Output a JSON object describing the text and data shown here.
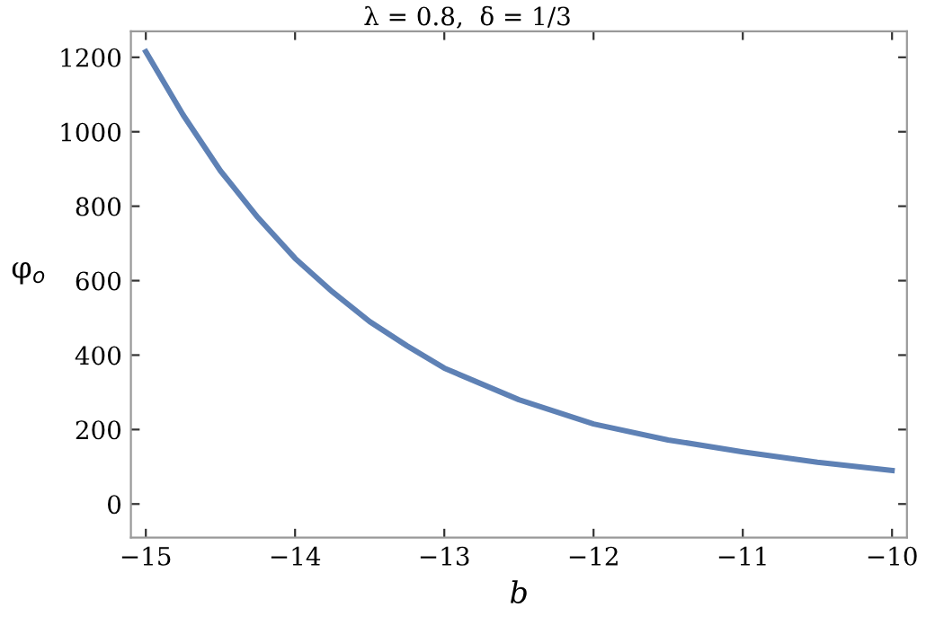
{
  "chart_data": {
    "type": "line",
    "title": "λ = 0.8,  δ = 1/3",
    "xlabel": "b",
    "ylabel": "φ$_{o}$",
    "series": [
      {
        "color": "#5e81b5",
        "x": [
          -15,
          -14.75,
          -14.5,
          -14.25,
          -14,
          -13.75,
          -13.5,
          -13.25,
          -13,
          -12.5,
          -12,
          -11.5,
          -11,
          -10.5,
          -10
        ],
        "values": [
          1215,
          1045,
          895,
          770,
          660,
          570,
          490,
          425,
          365,
          280,
          215,
          172,
          140,
          112,
          90
        ]
      }
    ],
    "xlim": [
      -15.1,
      -9.9
    ],
    "ylim": [
      -90,
      1270
    ],
    "xticks": [
      -15,
      -14,
      -13,
      -12,
      -11,
      -10
    ],
    "yticks": [
      0,
      200,
      400,
      600,
      800,
      1000,
      1200
    ],
    "grid": false,
    "legend": false,
    "marker": "none",
    "line_style": "solid"
  }
}
